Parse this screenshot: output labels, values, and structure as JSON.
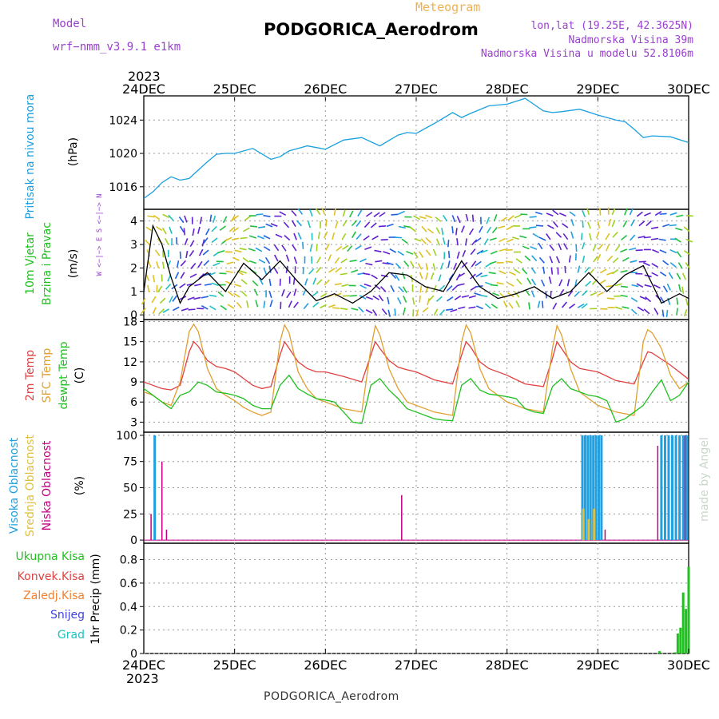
{
  "header": {
    "model_label": "Model",
    "model_name": "wrf−nmm_v3.9.1  e1km",
    "meteogram_label": "Meteogram",
    "station_title": "PODGORICA_Aerodrom",
    "lonlat": "lon,lat (19.25E, 42.3625N)",
    "elevation": "Nadmorska Visina 39m",
    "model_elevation": "Nadmorska Visina u modelu 52.8106m",
    "footer_title": "PODGORICA_Aerodrom",
    "watermark": "made by Angel"
  },
  "colors": {
    "pressure": "#1aa0e0",
    "wind_speed": "#000000",
    "gust": "#e03030",
    "temp2m": "#e04040",
    "sfc": "#e0a030",
    "dewpt": "#20c020",
    "cloud_high": "#20a0e0",
    "cloud_mid": "#e0c040",
    "cloud_low": "#c00080",
    "precip_total": "#20c020",
    "title_purple": "#9a3fd0",
    "title_orange": "#f0b050"
  },
  "time_axis": {
    "year_label": "2023",
    "ticks": [
      "24DEC",
      "25DEC",
      "26DEC",
      "27DEC",
      "28DEC",
      "29DEC",
      "30DEC"
    ]
  },
  "wind_compass": "W <−|−> E   S <−|−> N",
  "panels": {
    "pressure": {
      "label": "Pritisak na nivou mora",
      "unit": "(hPa)"
    },
    "wind": {
      "label1": "10m Vjetar",
      "label2": "Brzina i Pravac",
      "unit": "(m/s)"
    },
    "temperature": {
      "label1": "2m Temp",
      "label2": "SFC Temp",
      "label3": "dewpt Temp",
      "unit": "(C)"
    },
    "clouds": {
      "label1": "Visoka Oblacnost",
      "label2": "Srednja Oblacnost",
      "label3": "Niska Oblacnost",
      "unit": "(%)"
    },
    "precip": {
      "legend": [
        "Ukupna Kisa",
        "Konvek.Kisa",
        "Zaledj.Kisa",
        "Snijeg",
        "Grad"
      ],
      "unit": "1hr Precip (mm)"
    }
  },
  "chart_data": [
    {
      "type": "line",
      "title": "",
      "ylabel": "(hPa)",
      "ylim": [
        1013.3,
        1026.9
      ],
      "yticks": [
        1016,
        1020,
        1024
      ],
      "x_unit": "days since 24DEC 00UTC",
      "series": [
        {
          "name": "Pritisak na nivou mora",
          "x": [
            0,
            0.1,
            0.2,
            0.3,
            0.4,
            0.5,
            0.6,
            0.7,
            0.8,
            0.9,
            1.0,
            1.2,
            1.4,
            1.5,
            1.6,
            1.7,
            1.8,
            2.0,
            2.2,
            2.4,
            2.6,
            2.8,
            2.9,
            3.0,
            3.2,
            3.4,
            3.5,
            3.6,
            3.8,
            4.0,
            4.2,
            4.4,
            4.5,
            4.6,
            4.8,
            5.0,
            5.2,
            5.3,
            5.4,
            5.5,
            5.6,
            5.8,
            6.0
          ],
          "y": [
            1014.6,
            1015.4,
            1016.5,
            1017.2,
            1016.8,
            1017.0,
            1018.0,
            1019.0,
            1019.9,
            1020.0,
            1020.0,
            1020.6,
            1019.3,
            1019.6,
            1020.3,
            1020.6,
            1020.9,
            1020.5,
            1021.6,
            1021.9,
            1020.9,
            1022.2,
            1022.5,
            1022.4,
            1023.6,
            1024.9,
            1024.3,
            1024.8,
            1025.7,
            1025.9,
            1026.6,
            1025.1,
            1024.9,
            1025.0,
            1025.3,
            1024.6,
            1024.0,
            1023.8,
            1022.9,
            1021.9,
            1022.1,
            1022.0,
            1021.3
          ]
        }
      ]
    },
    {
      "type": "line",
      "title": "",
      "ylabel": "(m/s)",
      "ylim": [
        -0.2,
        4.5
      ],
      "yticks": [
        0,
        1,
        2,
        3,
        4
      ],
      "x_unit": "days since 24DEC 00UTC",
      "series": [
        {
          "name": "wind_speed",
          "x": [
            0,
            0.1,
            0.2,
            0.3,
            0.4,
            0.5,
            0.7,
            0.9,
            1.1,
            1.3,
            1.5,
            1.7,
            1.9,
            2.1,
            2.3,
            2.5,
            2.7,
            2.9,
            3.1,
            3.3,
            3.5,
            3.7,
            3.9,
            4.1,
            4.3,
            4.5,
            4.7,
            4.9,
            5.1,
            5.3,
            5.5,
            5.7,
            5.9,
            6.0
          ],
          "y": [
            1.0,
            3.8,
            3.0,
            1.6,
            0.5,
            1.2,
            1.8,
            1.0,
            2.2,
            1.5,
            2.3,
            1.4,
            0.6,
            0.9,
            0.5,
            1.0,
            1.8,
            1.7,
            1.2,
            1.0,
            2.3,
            1.2,
            0.7,
            0.9,
            1.2,
            0.7,
            1.0,
            1.8,
            1.0,
            1.7,
            2.1,
            0.5,
            0.9,
            0.7
          ]
        }
      ]
    },
    {
      "type": "line",
      "title": "",
      "ylabel": "(C)",
      "ylim": [
        1.5,
        18.3
      ],
      "yticks": [
        3,
        6,
        9,
        12,
        15,
        18
      ],
      "x_unit": "days since 24DEC 00UTC",
      "series": [
        {
          "name": "2m Temp",
          "x": [
            0,
            0.1,
            0.2,
            0.3,
            0.4,
            0.5,
            0.55,
            0.6,
            0.7,
            0.8,
            0.9,
            1.0,
            1.1,
            1.2,
            1.3,
            1.4,
            1.5,
            1.55,
            1.6,
            1.7,
            1.8,
            1.9,
            2.0,
            2.2,
            2.4,
            2.5,
            2.55,
            2.6,
            2.7,
            2.8,
            2.9,
            3.0,
            3.2,
            3.4,
            3.5,
            3.55,
            3.6,
            3.7,
            3.8,
            4.0,
            4.2,
            4.4,
            4.5,
            4.55,
            4.6,
            4.7,
            4.8,
            5.0,
            5.2,
            5.4,
            5.5,
            5.55,
            5.6,
            5.7,
            5.8,
            6.0
          ],
          "y": [
            9,
            8.5,
            8,
            7.8,
            8.5,
            13.5,
            15,
            14.3,
            12.2,
            11.3,
            11,
            10.5,
            9.5,
            8.5,
            8,
            8.3,
            13,
            15,
            14,
            12,
            11,
            10.5,
            10.5,
            9.8,
            9,
            13,
            15,
            14,
            12.2,
            11.2,
            10.8,
            10.5,
            9.3,
            8.7,
            13,
            15,
            14.2,
            12,
            11,
            10,
            8.7,
            8.3,
            12.5,
            15,
            14,
            12,
            11,
            10.5,
            9.2,
            8.7,
            12,
            13.5,
            13.3,
            12.4,
            11.5,
            9.4
          ]
        },
        {
          "name": "SFC Temp",
          "x": [
            0,
            0.1,
            0.2,
            0.3,
            0.4,
            0.5,
            0.55,
            0.6,
            0.7,
            0.8,
            0.9,
            1.0,
            1.1,
            1.2,
            1.3,
            1.4,
            1.5,
            1.55,
            1.6,
            1.7,
            1.8,
            1.9,
            2.0,
            2.2,
            2.4,
            2.5,
            2.55,
            2.6,
            2.7,
            2.8,
            2.9,
            3.0,
            3.2,
            3.4,
            3.5,
            3.55,
            3.6,
            3.7,
            3.8,
            4.0,
            4.2,
            4.4,
            4.5,
            4.55,
            4.6,
            4.7,
            4.8,
            5.0,
            5.2,
            5.4,
            5.5,
            5.55,
            5.6,
            5.7,
            5.8,
            5.9,
            6.0
          ],
          "y": [
            7.5,
            7,
            6,
            5.5,
            9,
            16.5,
            17.6,
            16.5,
            11,
            8,
            7,
            6.2,
            5.2,
            4.5,
            4,
            4.5,
            15,
            17.5,
            16.3,
            10.5,
            8,
            6.5,
            6,
            5,
            4.5,
            14,
            17.4,
            16,
            11,
            8,
            6,
            5.5,
            4.5,
            4,
            15,
            17.5,
            16.3,
            11,
            8,
            6,
            5,
            4.5,
            14,
            17.4,
            16,
            11,
            7.5,
            5.5,
            4.5,
            4,
            15,
            16.8,
            16.3,
            14,
            10,
            8,
            9
          ]
        },
        {
          "name": "dewpt Temp",
          "x": [
            0,
            0.1,
            0.2,
            0.3,
            0.4,
            0.5,
            0.6,
            0.7,
            0.8,
            0.9,
            1.0,
            1.1,
            1.2,
            1.3,
            1.4,
            1.5,
            1.6,
            1.7,
            1.8,
            1.9,
            2.0,
            2.1,
            2.2,
            2.3,
            2.4,
            2.5,
            2.6,
            2.7,
            2.8,
            2.9,
            3.0,
            3.1,
            3.2,
            3.3,
            3.4,
            3.5,
            3.6,
            3.7,
            3.8,
            3.9,
            4.0,
            4.1,
            4.2,
            4.3,
            4.4,
            4.5,
            4.6,
            4.7,
            4.8,
            4.9,
            5.0,
            5.1,
            5.2,
            5.3,
            5.4,
            5.5,
            5.6,
            5.7,
            5.8,
            5.9,
            6.0
          ],
          "y": [
            8,
            7,
            6,
            5,
            7,
            7.5,
            9,
            8.5,
            7.5,
            7.3,
            7,
            6.5,
            5.5,
            5,
            5,
            8.5,
            10,
            8,
            7.2,
            6.5,
            6.3,
            6,
            4.5,
            3,
            2.8,
            8.5,
            9.5,
            7.8,
            6.5,
            5,
            4.5,
            4,
            3.5,
            3.3,
            3.2,
            8.5,
            9.5,
            7.8,
            7.2,
            7,
            6.8,
            6.5,
            5,
            4.5,
            4.3,
            8.3,
            9.5,
            8,
            7.5,
            7,
            6.8,
            6.2,
            3,
            3.5,
            4.5,
            5.5,
            7.5,
            9.3,
            6.2,
            7,
            9
          ]
        }
      ]
    },
    {
      "type": "bar",
      "title": "",
      "ylabel": "(%)",
      "ylim": [
        -3,
        103
      ],
      "yticks": [
        0,
        25,
        50,
        75,
        100
      ],
      "x_unit": "days since 24DEC 00UTC",
      "series": [
        {
          "name": "Visoka Oblacnost",
          "x": [
            0.12,
            4.83,
            4.86,
            4.89,
            4.92,
            4.95,
            4.98,
            5.01,
            5.04,
            5.7,
            5.74,
            5.78,
            5.82,
            5.86,
            5.9,
            5.94,
            5.98
          ],
          "y": [
            100,
            100,
            100,
            100,
            100,
            100,
            100,
            100,
            100,
            100,
            100,
            100,
            100,
            100,
            100,
            100,
            100
          ]
        },
        {
          "name": "Srednja Oblacnost",
          "x": [
            4.84,
            4.9,
            4.96
          ],
          "y": [
            30,
            20,
            30
          ]
        },
        {
          "name": "Niska Oblacnost",
          "x": [
            0.08,
            0.2,
            0.25,
            2.84,
            5.08,
            5.66,
            5.96
          ],
          "y": [
            25,
            75,
            10,
            43,
            10,
            90,
            100
          ]
        }
      ]
    },
    {
      "type": "bar",
      "title": "",
      "ylabel": "1hr Precip (mm)",
      "ylim": [
        0,
        0.94
      ],
      "yticks": [
        0,
        0.2,
        0.4,
        0.6,
        0.8
      ],
      "x_unit": "days since 24DEC 00UTC",
      "series": [
        {
          "name": "Ukupna Kisa",
          "x": [
            5.68,
            5.85,
            5.88,
            5.91,
            5.94,
            5.97,
            6.0
          ],
          "y": [
            0.02,
            0.01,
            0.17,
            0.22,
            0.52,
            0.38,
            0.74
          ]
        }
      ]
    }
  ]
}
